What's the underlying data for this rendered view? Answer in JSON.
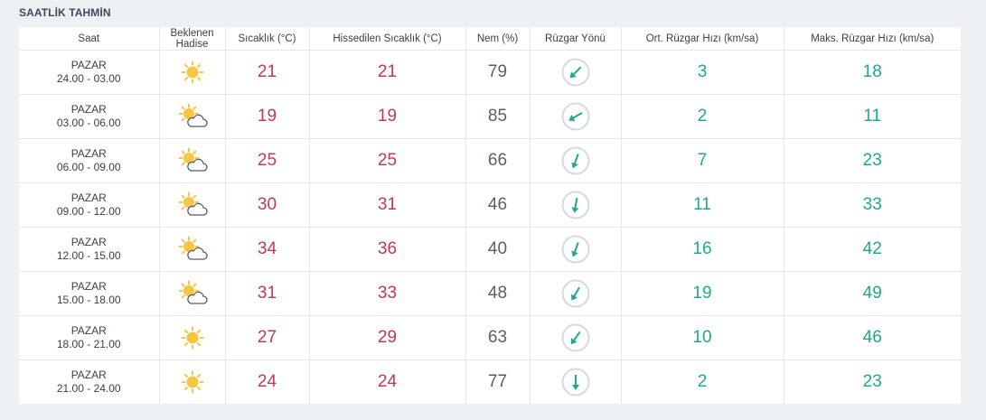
{
  "header": {
    "title": "SAATLİK TAHMİN"
  },
  "table": {
    "columns": [
      "Saat",
      "Beklenen Hadise",
      "Sıcaklık (°C)",
      "Hissedilen Sıcaklık (°C)",
      "Nem (%)",
      "Rüzgar Yönü",
      "Ort. Rüzgar Hızı (km/sa)",
      "Maks. Rüzgar Hızı (km/sa)"
    ],
    "rows": [
      {
        "day": "PAZAR",
        "range": "24.00 - 03.00",
        "icon": "sun-icon",
        "temp": "21",
        "feels": "21",
        "humidity": "79",
        "wind_icon": "wind-direction-icon",
        "wind_angle_deg": 225,
        "avg": "3",
        "max": "18"
      },
      {
        "day": "PAZAR",
        "range": "03.00 - 06.00",
        "icon": "partly-cloudy-icon",
        "temp": "19",
        "feels": "19",
        "humidity": "85",
        "wind_icon": "wind-direction-icon",
        "wind_angle_deg": 240,
        "avg": "2",
        "max": "11"
      },
      {
        "day": "PAZAR",
        "range": "06.00 - 09.00",
        "icon": "partly-cloudy-icon",
        "temp": "25",
        "feels": "25",
        "humidity": "66",
        "wind_icon": "wind-direction-icon",
        "wind_angle_deg": 200,
        "avg": "7",
        "max": "23"
      },
      {
        "day": "PAZAR",
        "range": "09.00 - 12.00",
        "icon": "partly-cloudy-icon",
        "temp": "30",
        "feels": "31",
        "humidity": "46",
        "wind_icon": "wind-direction-icon",
        "wind_angle_deg": 190,
        "avg": "11",
        "max": "33"
      },
      {
        "day": "PAZAR",
        "range": "12.00 - 15.00",
        "icon": "partly-cloudy-icon",
        "temp": "34",
        "feels": "36",
        "humidity": "40",
        "wind_icon": "wind-direction-icon",
        "wind_angle_deg": 200,
        "avg": "16",
        "max": "42"
      },
      {
        "day": "PAZAR",
        "range": "15.00 - 18.00",
        "icon": "partly-cloudy-icon",
        "temp": "31",
        "feels": "33",
        "humidity": "48",
        "wind_icon": "wind-direction-icon",
        "wind_angle_deg": 210,
        "avg": "19",
        "max": "49"
      },
      {
        "day": "PAZAR",
        "range": "18.00 - 21.00",
        "icon": "sun-icon",
        "temp": "27",
        "feels": "29",
        "humidity": "63",
        "wind_icon": "wind-direction-icon",
        "wind_angle_deg": 215,
        "avg": "10",
        "max": "46"
      },
      {
        "day": "PAZAR",
        "range": "21.00 - 24.00",
        "icon": "sun-icon",
        "temp": "24",
        "feels": "24",
        "humidity": "77",
        "wind_icon": "wind-direction-icon",
        "wind_angle_deg": 180,
        "avg": "2",
        "max": "23"
      }
    ]
  },
  "colors": {
    "temperature": "#c2375a",
    "wind": "#1fa98a",
    "humidity": "#585e6b",
    "sun": "#f6c543",
    "background": "#eef1f4"
  }
}
